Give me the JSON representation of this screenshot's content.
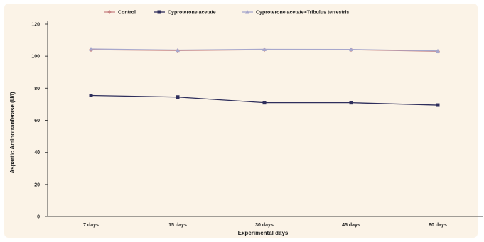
{
  "chart_data": {
    "type": "line",
    "title": "",
    "xlabel": "Experimental days",
    "ylabel": "Aspartic Aminotranferase (U/l)",
    "categories": [
      "7 days",
      "15 days",
      "30 days",
      "45 days",
      "60 days"
    ],
    "ylim": [
      0,
      120
    ],
    "yticks": [
      0,
      20,
      40,
      60,
      80,
      100,
      120
    ],
    "grid": false,
    "legend_position": "top",
    "series": [
      {
        "name": "Control",
        "values": [
          104,
          103.5,
          104,
          104,
          103
        ],
        "color": "#c98585",
        "marker": "diamond"
      },
      {
        "name": "Cyproterone acetate",
        "values": [
          75.5,
          74.5,
          71,
          71,
          69.5
        ],
        "color": "#2e2e5c",
        "marker": "square"
      },
      {
        "name": "Cyproterone acetate+Tribulus terrestris",
        "values": [
          104.5,
          103.8,
          104.3,
          104.2,
          103.3
        ],
        "color": "#a7a7cc",
        "marker": "triangle"
      }
    ],
    "colors": {
      "plot_background": "#fbf3e7",
      "axis": "#444444"
    }
  }
}
